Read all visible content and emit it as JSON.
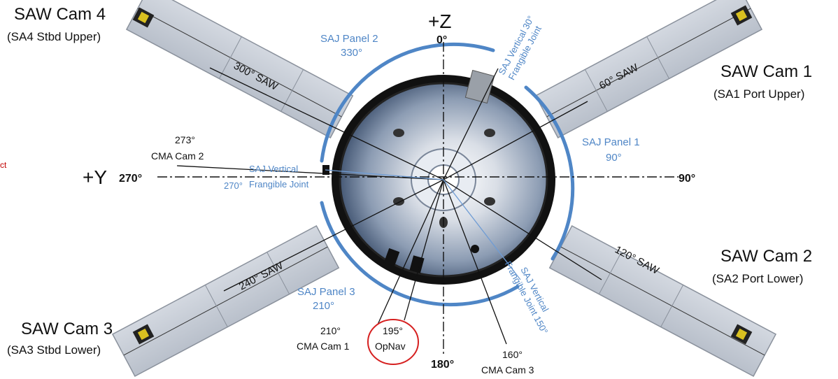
{
  "cameras": {
    "saw4": {
      "title": "SAW Cam 4",
      "sub": "(SA4 Stbd Upper)"
    },
    "saw1": {
      "title": "SAW Cam 1",
      "sub": "(SA1 Port Upper)"
    },
    "saw2": {
      "title": "SAW Cam 2",
      "sub": "(SA2 Port Lower)"
    },
    "saw3": {
      "title": "SAW Cam 3",
      "sub": "(SA3 Stbd Lower)"
    }
  },
  "axes": {
    "plus_z": "+Z",
    "zero": "0°",
    "plus_y": "+Y",
    "deg270": "270°",
    "deg90": "90°",
    "deg180": "180°"
  },
  "wings": {
    "w300": "300° SAW",
    "w60": "60° SAW",
    "w240": "240° SAW",
    "w120": "120° SAW"
  },
  "saj_panels": {
    "p2_name": "SAJ Panel 2",
    "p2_deg": "330°",
    "p1_name": "SAJ Panel 1",
    "p1_deg": "90°",
    "p3_name": "SAJ Panel 3",
    "p3_deg": "210°"
  },
  "joints": {
    "j30_a": "SAJ Vertical 30°",
    "j30_b": "Frangible Joint",
    "j270_a": "SAJ Vertical",
    "j270_deg": "270°",
    "j270_b": "Frangible Joint",
    "j150_a": "SAJ Vertical",
    "j150_b": "Frangible Joint 150°"
  },
  "cma": {
    "c2_deg": "273°",
    "c2_name": "CMA Cam 2",
    "c1_deg": "210°",
    "c1_name": "CMA Cam 1",
    "opnav_deg": "195°",
    "opnav_name": "OpNav",
    "c3_deg": "160°",
    "c3_name": "CMA Cam 3"
  },
  "edge_text": {
    "t1": "ct"
  },
  "colors": {
    "saj_blue": "#4f86c6",
    "wing_fill": "#c7cdd6",
    "highlight_red": "#d62020"
  }
}
